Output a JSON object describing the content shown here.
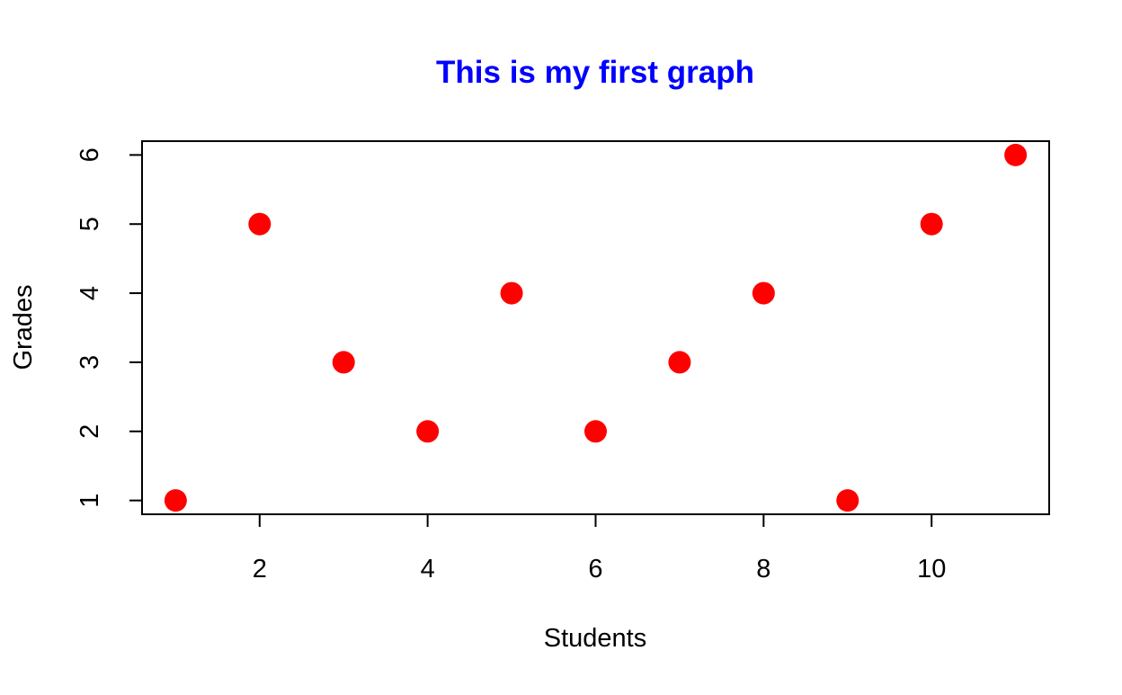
{
  "chart_data": {
    "type": "scatter",
    "title": "This is my first graph",
    "xlabel": "Students",
    "ylabel": "Grades",
    "x": [
      1,
      2,
      3,
      4,
      5,
      6,
      7,
      8,
      9,
      10,
      11
    ],
    "y": [
      1,
      5,
      3,
      2,
      4,
      2,
      3,
      4,
      1,
      5,
      6
    ],
    "xlim": [
      0.6,
      11.4
    ],
    "ylim": [
      0.8,
      6.2
    ],
    "x_ticks": [
      2,
      4,
      6,
      8,
      10
    ],
    "y_ticks": [
      1,
      2,
      3,
      4,
      5,
      6
    ],
    "grid": false,
    "colors": {
      "title": "#0000ff",
      "points": "#ff0000",
      "axes": "#000000"
    }
  }
}
